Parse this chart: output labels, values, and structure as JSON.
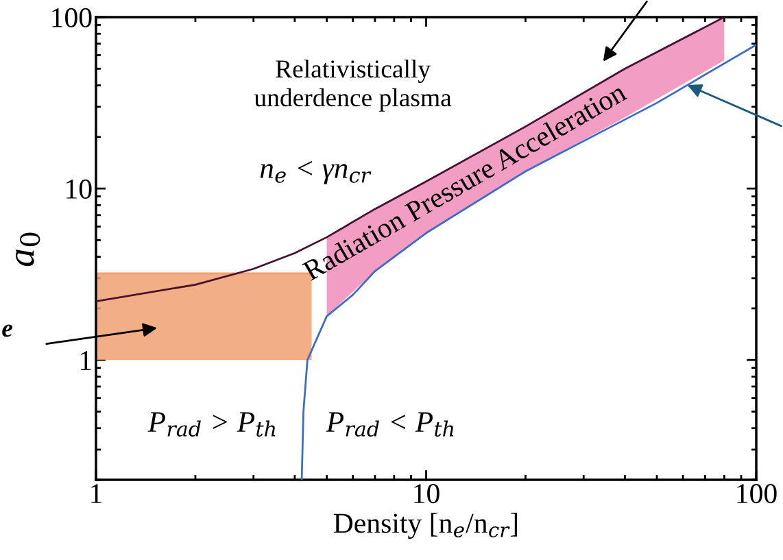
{
  "chart_data": {
    "type": "line",
    "xlabel": "Density [n$_{e}$/n$_{cr}$]",
    "ylabel": "a$_{0}$",
    "log": "xy",
    "xlim": [
      1,
      100
    ],
    "ylim": [
      0.2,
      100
    ],
    "xticks": [
      1,
      10,
      100
    ],
    "yticks": [
      1,
      10,
      100
    ],
    "grid": false,
    "marker": "none",
    "line_style": "solid",
    "series": [
      {
        "color": "#4a1030",
        "x": [
          1,
          2,
          3,
          4,
          5,
          7,
          10,
          20,
          40,
          80
        ],
        "values": [
          2.2,
          2.75,
          3.4,
          4.2,
          5.2,
          7.6,
          11,
          23,
          50,
          100
        ],
        "lower": [
          null,
          null,
          null,
          null,
          1.8,
          3.3,
          5.5,
          12.6,
          26,
          56
        ],
        "upper": [
          null,
          null,
          null,
          null,
          5.2,
          7.6,
          11,
          23,
          50,
          100
        ]
      },
      {
        "color": "#3a6fc4",
        "x": [
          4.2,
          4.25,
          4.37,
          5,
          6,
          7,
          10,
          20,
          50,
          100
        ],
        "values": [
          0.2,
          0.5,
          1,
          1.8,
          2.4,
          3.3,
          5.5,
          12.6,
          31.6,
          69
        ]
      },
      {
        "color": "#f0a070",
        "x": [
          1,
          4.5
        ],
        "values": [
          3.2,
          3.2
        ],
        "lower": [
          1,
          1
        ],
        "upper": [
          3.2,
          3.2
        ]
      }
    ],
    "annotations": [
      "Relativistically\nunderdence plasma",
      "n$_{e}$ < γn$_{cr}$",
      "Radiation Pressure Acceleration",
      "P$_{rad}$ > P$_{th}$",
      "P$_{rad}$ < P$_{th}$",
      "e"
    ]
  }
}
